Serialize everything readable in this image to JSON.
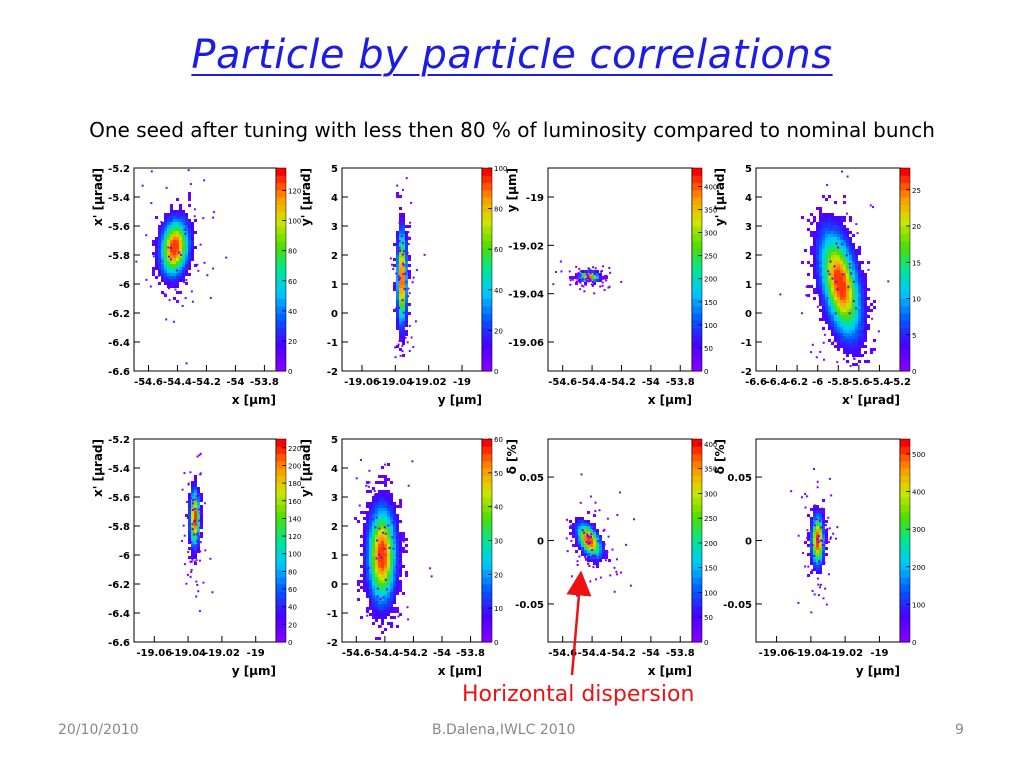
{
  "title": "Particle by particle correlations",
  "subtitle": "One seed after tuning with less then 80 % of luminosity compared to nominal bunch",
  "annotation": "Horizontal dispersion",
  "footer": {
    "date": "20/10/2010",
    "author": "B.Dalena,IWLC 2010",
    "page": "9"
  },
  "chart_data": [
    {
      "type": "heatmap",
      "xlabel": "x [μm]",
      "ylabel": "x' [μrad]",
      "xticks": [
        -54.6,
        -54.4,
        -54.2,
        -54,
        -53.8
      ],
      "xtick_labels": [
        "-54.6",
        "-54.4",
        "-54.2",
        "-54",
        "-53.8"
      ],
      "yticks": [
        -6.6,
        -6.4,
        -6.2,
        -6,
        -5.8,
        -5.6,
        -5.4,
        -5.2
      ],
      "ytick_labels": [
        "-6.6",
        "-6.4",
        "-6.2",
        "-6",
        "-5.8",
        "-5.6",
        "-5.4",
        "-5.2"
      ],
      "xlim": [
        -54.7,
        -53.72
      ],
      "ylim": [
        -6.6,
        -5.2
      ],
      "zticks": [
        20,
        40,
        60,
        80,
        100,
        120
      ],
      "zmax": 135,
      "cluster": {
        "x": -54.42,
        "y": -5.75,
        "sx": 0.06,
        "sy": 0.12,
        "corr": 0.15
      }
    },
    {
      "type": "heatmap",
      "xlabel": "y [μm]",
      "ylabel": "y' [μrad]",
      "xticks": [
        -19.06,
        -19.04,
        -19.02,
        -19
      ],
      "xtick_labels": [
        "-19.06",
        "-19.04",
        "-19.02",
        "-19"
      ],
      "yticks": [
        -2,
        -1,
        0,
        1,
        2,
        3,
        4,
        5
      ],
      "ytick_labels": [
        "-2",
        "-1",
        "0",
        "1",
        "2",
        "3",
        "4",
        "5"
      ],
      "xlim": [
        -19.072,
        -18.988
      ],
      "ylim": [
        -2,
        5
      ],
      "zticks": [
        20,
        40,
        60,
        80,
        100
      ],
      "zmax": 100,
      "cluster": {
        "x": -19.036,
        "y": 1.2,
        "sx": 0.0018,
        "sy": 1.0,
        "corr": 0
      }
    },
    {
      "type": "heatmap",
      "xlabel": "x [μm]",
      "ylabel": "y [μm]",
      "xticks": [
        -54.6,
        -54.4,
        -54.2,
        -54,
        -53.8
      ],
      "xtick_labels": [
        "-54.6",
        "-54.4",
        "-54.2",
        "-54",
        "-53.8"
      ],
      "yticks": [
        -19.06,
        -19.04,
        -19.02,
        -19
      ],
      "ytick_labels": [
        "-19.06",
        "-19.04",
        "-19.02",
        "-19"
      ],
      "xlim": [
        -54.7,
        -53.72
      ],
      "ylim": [
        -19.072,
        -18.988
      ],
      "zticks": [
        50,
        100,
        150,
        200,
        250,
        300,
        350,
        400
      ],
      "zmax": 440,
      "cluster": {
        "x": -54.42,
        "y": -19.033,
        "sx": 0.04,
        "sy": 0.0012,
        "corr": 0
      }
    },
    {
      "type": "heatmap",
      "xlabel": "x' [μrad]",
      "ylabel": "y' [μrad]",
      "xticks": [
        -6.6,
        -6.4,
        -6.2,
        -6,
        -5.8,
        -5.6,
        -5.4,
        -5.2
      ],
      "xtick_labels": [
        "-6.6",
        "-6.4",
        "-6.2",
        "-6",
        "-5.8",
        "-5.6",
        "-5.4",
        "-5.2"
      ],
      "yticks": [
        -2,
        -1,
        0,
        1,
        2,
        3,
        4,
        5
      ],
      "ytick_labels": [
        "-2",
        "-1",
        "0",
        "1",
        "2",
        "3",
        "4",
        "5"
      ],
      "xlim": [
        -6.6,
        -5.2
      ],
      "ylim": [
        -2,
        5
      ],
      "zticks": [
        5,
        10,
        15,
        20,
        25
      ],
      "zmax": 28,
      "cluster": {
        "x": -5.78,
        "y": 1.0,
        "sx": 0.12,
        "sy": 1.1,
        "corr": -0.45
      }
    },
    {
      "type": "heatmap",
      "xlabel": "y [μm]",
      "ylabel": "x' [μrad]",
      "xticks": [
        -19.06,
        -19.04,
        -19.02,
        -19
      ],
      "xtick_labels": [
        "-19.06",
        "-19.04",
        "-19.02",
        "-19"
      ],
      "yticks": [
        -6.6,
        -6.4,
        -6.2,
        -6,
        -5.8,
        -5.6,
        -5.4,
        -5.2
      ],
      "ytick_labels": [
        "-6.6",
        "-6.4",
        "-6.2",
        "-6",
        "-5.8",
        "-5.6",
        "-5.4",
        "-5.2"
      ],
      "xlim": [
        -19.072,
        -18.988
      ],
      "ylim": [
        -6.6,
        -5.2
      ],
      "zticks": [
        20,
        40,
        60,
        80,
        100,
        120,
        140,
        160,
        180,
        200,
        220
      ],
      "zmax": 230,
      "cluster": {
        "x": -19.036,
        "y": -5.75,
        "sx": 0.0018,
        "sy": 0.12,
        "corr": 0
      }
    },
    {
      "type": "heatmap",
      "xlabel": "x [μm]",
      "ylabel": "y' [μrad]",
      "xticks": [
        -54.6,
        -54.4,
        -54.2,
        -54,
        -53.8
      ],
      "xtick_labels": [
        "-54.6",
        "-54.4",
        "-54.2",
        "-54",
        "-53.8"
      ],
      "yticks": [
        -2,
        -1,
        0,
        1,
        2,
        3,
        4,
        5
      ],
      "ytick_labels": [
        "-2",
        "-1",
        "0",
        "1",
        "2",
        "3",
        "4",
        "5"
      ],
      "xlim": [
        -54.7,
        -53.72
      ],
      "ylim": [
        -2,
        5
      ],
      "zticks": [
        10,
        20,
        30,
        40,
        50,
        60
      ],
      "zmax": 60,
      "cluster": {
        "x": -54.42,
        "y": 1.0,
        "sx": 0.06,
        "sy": 1.0,
        "corr": 0
      }
    },
    {
      "type": "heatmap",
      "xlabel": "x [μm]",
      "ylabel": "δ [%]",
      "xticks": [
        -54.6,
        -54.4,
        -54.2,
        -54,
        -53.8
      ],
      "xtick_labels": [
        "-54.6",
        "-54.4",
        "-54.2",
        "-54",
        "-53.8"
      ],
      "yticks": [
        -0.05,
        0,
        0.05
      ],
      "ytick_labels": [
        "-0.05",
        "0",
        "0.05"
      ],
      "xlim": [
        -54.7,
        -53.72
      ],
      "ylim": [
        -0.08,
        0.08
      ],
      "zticks": [
        50,
        100,
        150,
        200,
        250,
        300,
        350,
        400
      ],
      "zmax": 410,
      "cluster": {
        "x": -54.42,
        "y": 0.0,
        "sx": 0.05,
        "sy": 0.008,
        "corr": -0.5
      }
    },
    {
      "type": "heatmap",
      "xlabel": "y [μm]",
      "ylabel": "δ [%]",
      "xticks": [
        -19.06,
        -19.04,
        -19.02,
        -19
      ],
      "xtick_labels": [
        "-19.06",
        "-19.04",
        "-19.02",
        "-19"
      ],
      "yticks": [
        -0.05,
        0,
        0.05
      ],
      "ytick_labels": [
        "-0.05",
        "0",
        "0.05"
      ],
      "xlim": [
        -19.072,
        -18.988
      ],
      "ylim": [
        -0.08,
        0.08
      ],
      "zticks": [
        100,
        200,
        300,
        400,
        500
      ],
      "zmax": 540,
      "cluster": {
        "x": -19.036,
        "y": 0.0,
        "sx": 0.0022,
        "sy": 0.012,
        "corr": 0
      }
    }
  ]
}
